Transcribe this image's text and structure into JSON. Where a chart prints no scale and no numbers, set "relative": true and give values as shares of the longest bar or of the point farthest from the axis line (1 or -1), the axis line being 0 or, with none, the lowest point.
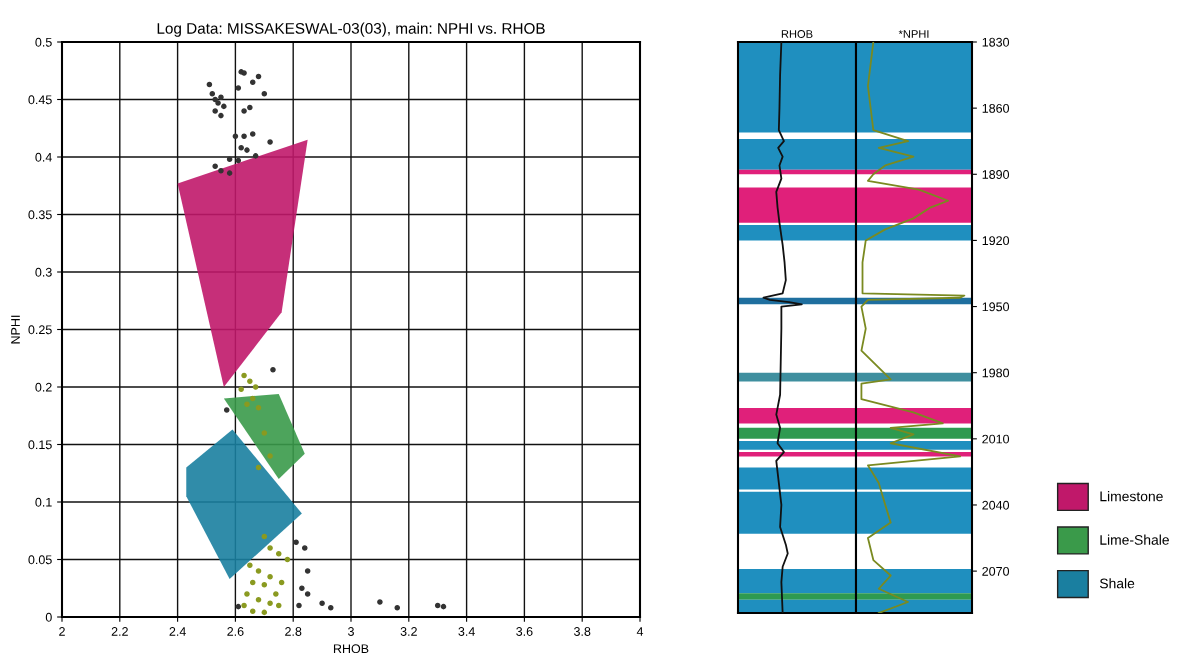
{
  "chart_data": [
    {
      "type": "scatter",
      "title": "Log Data: MISSAKESWAL-03(03), main: NPHI vs. RHOB",
      "xlabel": "RHOB",
      "ylabel": "NPHI",
      "xlim": [
        2,
        4
      ],
      "ylim": [
        0,
        0.5
      ],
      "xticks": [
        2,
        2.2,
        2.4,
        2.6,
        2.8,
        3,
        3.2,
        3.4,
        3.6,
        3.8,
        4
      ],
      "yticks": [
        0,
        0.05,
        0.1,
        0.15,
        0.2,
        0.25,
        0.3,
        0.35,
        0.4,
        0.45,
        0.5
      ],
      "grid": true,
      "legend": "right",
      "series": [
        {
          "type": "area",
          "name": "Limestone",
          "color": "#c0186a",
          "x": [
            2.4,
            2.85,
            2.76,
            2.56
          ],
          "values": [
            0.377,
            0.415,
            0.265,
            0.2
          ]
        },
        {
          "type": "area",
          "name": "Lime-Shale",
          "color": "#3a9a4a",
          "x": [
            2.56,
            2.75,
            2.84,
            2.75
          ],
          "values": [
            0.19,
            0.194,
            0.142,
            0.12
          ]
        },
        {
          "type": "area",
          "name": "Shale",
          "color": "#1a7fa0",
          "x": [
            2.43,
            2.59,
            2.83,
            2.58,
            2.43
          ],
          "values": [
            0.13,
            0.163,
            0.09,
            0.033,
            0.105
          ]
        },
        {
          "type": "scatter",
          "marker": "circle",
          "color": "#8a9a20",
          "x": [
            2.63,
            2.65,
            2.67,
            2.62,
            2.66,
            2.64,
            2.68,
            2.7,
            2.72,
            2.68,
            2.7,
            2.72,
            2.75,
            2.78,
            2.65,
            2.68,
            2.72,
            2.66,
            2.7,
            2.76,
            2.64,
            2.68,
            2.72,
            2.75,
            2.66,
            2.7,
            2.74,
            2.63
          ],
          "values": [
            0.21,
            0.205,
            0.2,
            0.198,
            0.19,
            0.185,
            0.182,
            0.16,
            0.14,
            0.13,
            0.07,
            0.06,
            0.055,
            0.05,
            0.045,
            0.04,
            0.035,
            0.03,
            0.028,
            0.03,
            0.02,
            0.015,
            0.012,
            0.01,
            0.005,
            0.004,
            0.02,
            0.01
          ]
        },
        {
          "type": "scatter",
          "marker": "circle",
          "color": "#333333",
          "x": [
            2.51,
            2.52,
            2.53,
            2.54,
            2.55,
            2.56,
            2.53,
            2.55,
            2.62,
            2.63,
            2.61,
            2.66,
            2.68,
            2.7,
            2.63,
            2.65,
            2.6,
            2.63,
            2.66,
            2.72,
            2.62,
            2.64,
            2.53,
            2.55,
            2.58,
            2.61,
            2.67,
            2.58,
            2.84,
            2.81,
            2.85,
            2.83,
            2.85,
            2.82,
            2.9,
            2.93,
            3.1,
            3.16,
            3.3,
            3.32,
            2.61,
            2.57,
            2.73
          ],
          "values": [
            0.463,
            0.455,
            0.45,
            0.447,
            0.452,
            0.444,
            0.44,
            0.436,
            0.474,
            0.473,
            0.46,
            0.465,
            0.47,
            0.455,
            0.44,
            0.443,
            0.418,
            0.418,
            0.42,
            0.413,
            0.408,
            0.406,
            0.392,
            0.388,
            0.398,
            0.397,
            0.401,
            0.386,
            0.06,
            0.065,
            0.04,
            0.025,
            0.02,
            0.01,
            0.012,
            0.008,
            0.013,
            0.008,
            0.01,
            0.009,
            0.009,
            0.18,
            0.215
          ]
        }
      ]
    },
    {
      "type": "line",
      "title": "RHOB",
      "orientation": "horizontal",
      "relative": true,
      "tick_labels": false,
      "ylim": [
        2089,
        1830
      ],
      "bands": [
        {
          "axis": "y",
          "from": 1830,
          "to": 1871,
          "color": "#1f8fbf"
        },
        {
          "axis": "y",
          "from": 1874,
          "to": 1888,
          "color": "#1f8fbf"
        },
        {
          "axis": "y",
          "from": 1888,
          "to": 1890,
          "color": "#e0207a"
        },
        {
          "axis": "y",
          "from": 1896,
          "to": 1912,
          "color": "#e0207a"
        },
        {
          "axis": "y",
          "from": 1913,
          "to": 1920,
          "color": "#1f8fbf"
        },
        {
          "axis": "y",
          "from": 1946,
          "to": 1949,
          "color": "#1f6f9f"
        },
        {
          "axis": "y",
          "from": 1980,
          "to": 1984,
          "color": "#3f8f9f"
        },
        {
          "axis": "y",
          "from": 1996,
          "to": 2003,
          "color": "#e0207a"
        },
        {
          "axis": "y",
          "from": 2005,
          "to": 2010,
          "color": "#2e9a50"
        },
        {
          "axis": "y",
          "from": 2011,
          "to": 2015,
          "color": "#1f8fbf"
        },
        {
          "axis": "y",
          "from": 2016,
          "to": 2018,
          "color": "#e0207a"
        },
        {
          "axis": "y",
          "from": 2023,
          "to": 2033,
          "color": "#1f8fbf"
        },
        {
          "axis": "y",
          "from": 2034,
          "to": 2053,
          "color": "#1f8fbf"
        },
        {
          "axis": "y",
          "from": 2069,
          "to": 2080,
          "color": "#1f8fbf"
        },
        {
          "axis": "y",
          "from": 2080,
          "to": 2083,
          "color": "#2e9a50"
        },
        {
          "axis": "y",
          "from": 2083,
          "to": 2089,
          "color": "#1f8fbf"
        }
      ],
      "series": [
        {
          "color": "#111111",
          "x": [
            1830,
            1845,
            1860,
            1870,
            1875,
            1878,
            1882,
            1886,
            1892,
            1898,
            1905,
            1912,
            1918,
            1922,
            1930,
            1938,
            1944,
            1946,
            1947,
            1948,
            1949,
            1950,
            1960,
            1975,
            1990,
            1999,
            2005,
            2012,
            2016,
            2020,
            2030,
            2040,
            2050,
            2058,
            2062,
            2068,
            2075,
            2089
          ],
          "values": [
            0.68,
            0.66,
            0.65,
            0.64,
            0.72,
            0.63,
            0.7,
            0.65,
            0.68,
            0.6,
            0.62,
            0.65,
            0.68,
            0.7,
            0.73,
            0.75,
            0.7,
            0.4,
            0.5,
            0.8,
            1,
            0.68,
            0.68,
            0.67,
            0.66,
            0.6,
            0.66,
            0.62,
            0.72,
            0.6,
            0.64,
            0.68,
            0.66,
            0.75,
            0.78,
            0.7,
            0.68,
            0.7
          ]
        }
      ]
    },
    {
      "type": "line",
      "title": "*NPHI",
      "orientation": "horizontal",
      "relative": true,
      "tick_labels": "y",
      "ylim": [
        2089,
        1830
      ],
      "yticks": [
        1830,
        1860,
        1890,
        1920,
        1950,
        1980,
        2010,
        2040,
        2070
      ],
      "bands": [
        {
          "axis": "y",
          "from": 1830,
          "to": 1871,
          "color": "#1f8fbf"
        },
        {
          "axis": "y",
          "from": 1874,
          "to": 1888,
          "color": "#1f8fbf"
        },
        {
          "axis": "y",
          "from": 1888,
          "to": 1890,
          "color": "#e0207a"
        },
        {
          "axis": "y",
          "from": 1896,
          "to": 1912,
          "color": "#e0207a"
        },
        {
          "axis": "y",
          "from": 1913,
          "to": 1920,
          "color": "#1f8fbf"
        },
        {
          "axis": "y",
          "from": 1946,
          "to": 1949,
          "color": "#1f6f9f"
        },
        {
          "axis": "y",
          "from": 1980,
          "to": 1984,
          "color": "#3f8f9f"
        },
        {
          "axis": "y",
          "from": 1996,
          "to": 2003,
          "color": "#e0207a"
        },
        {
          "axis": "y",
          "from": 2005,
          "to": 2010,
          "color": "#2e9a50"
        },
        {
          "axis": "y",
          "from": 2011,
          "to": 2015,
          "color": "#1f8fbf"
        },
        {
          "axis": "y",
          "from": 2016,
          "to": 2018,
          "color": "#e0207a"
        },
        {
          "axis": "y",
          "from": 2023,
          "to": 2033,
          "color": "#1f8fbf"
        },
        {
          "axis": "y",
          "from": 2034,
          "to": 2053,
          "color": "#1f8fbf"
        },
        {
          "axis": "y",
          "from": 2069,
          "to": 2080,
          "color": "#1f8fbf"
        },
        {
          "axis": "y",
          "from": 2080,
          "to": 2083,
          "color": "#2e9a50"
        },
        {
          "axis": "y",
          "from": 2083,
          "to": 2089,
          "color": "#1f8fbf"
        }
      ],
      "series": [
        {
          "color": "#7a8a20",
          "x": [
            1830,
            1850,
            1870,
            1875,
            1878,
            1882,
            1886,
            1890,
            1893,
            1897,
            1902,
            1905,
            1910,
            1915,
            1920,
            1930,
            1944,
            1945,
            1946,
            1947,
            1950,
            1960,
            1970,
            1983,
            1985,
            1992,
            1998,
            2003,
            2005,
            2008,
            2012,
            2018,
            2022,
            2030,
            2040,
            2048,
            2055,
            2065,
            2072,
            2078,
            2084,
            2089
          ],
          "values": [
            0.16,
            0.11,
            0.16,
            0.48,
            0.21,
            0.53,
            0.27,
            0.16,
            0.11,
            0.58,
            0.85,
            0.69,
            0.53,
            0.27,
            0.09,
            0.06,
            0.06,
            1,
            0.96,
            0.11,
            0.05,
            0.09,
            0.05,
            0.32,
            0.05,
            0.05,
            0.53,
            0.8,
            0.32,
            0.53,
            0.32,
            0.96,
            0.11,
            0.21,
            0.27,
            0.32,
            0.11,
            0.16,
            0.32,
            0.21,
            0.48,
            0.21
          ]
        }
      ]
    }
  ]
}
